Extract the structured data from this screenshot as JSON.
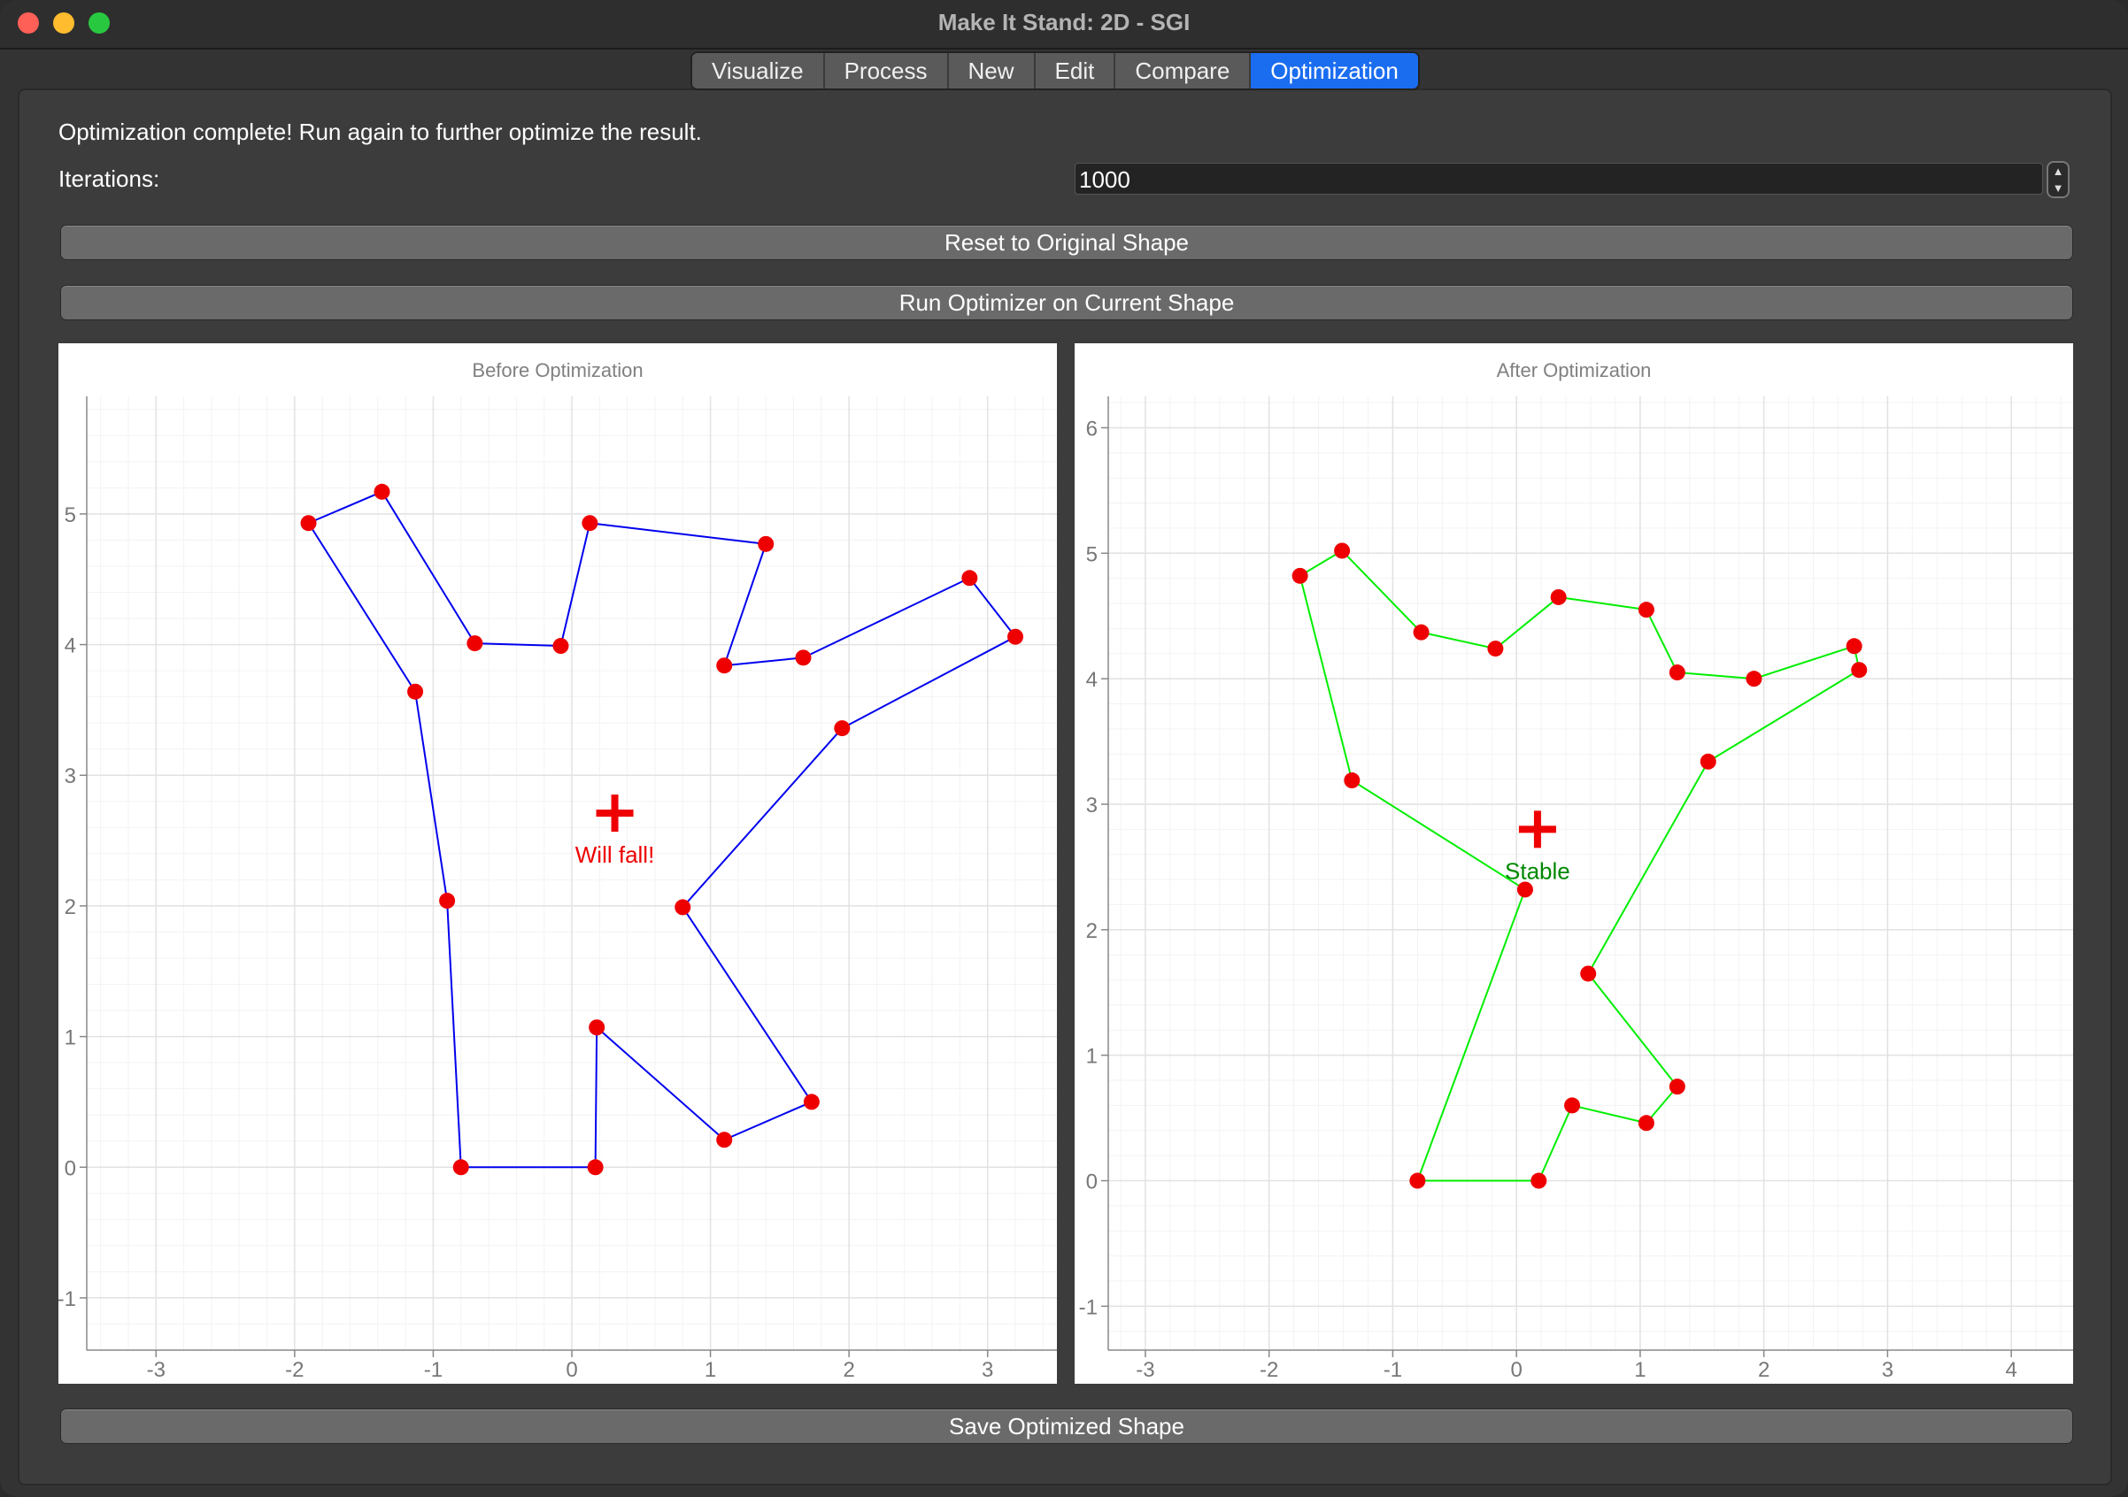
{
  "window": {
    "title": "Make It Stand: 2D - SGI"
  },
  "tabs": [
    {
      "label": "Visualize",
      "active": false
    },
    {
      "label": "Process",
      "active": false
    },
    {
      "label": "New",
      "active": false
    },
    {
      "label": "Edit",
      "active": false
    },
    {
      "label": "Compare",
      "active": false
    },
    {
      "label": "Optimization",
      "active": true
    }
  ],
  "status_message": "Optimization complete! Run again to further optimize the result.",
  "iterations": {
    "label": "Iterations:",
    "value": "1000"
  },
  "buttons": {
    "reset": "Reset to Original Shape",
    "run": "Run Optimizer on Current Shape",
    "save": "Save Optimized Shape"
  },
  "colors": {
    "accent": "#1b6df0",
    "vertex": "#ee0000",
    "before_line": "#0000ee",
    "after_line": "#00ee00",
    "stable_text": "#008800",
    "fall_text": "#ee0000"
  },
  "chart_data": [
    {
      "type": "line",
      "title": "Before Optimization",
      "xlim": [
        -3.5,
        3.5
      ],
      "ylim": [
        -1.4,
        5.9
      ],
      "xticks": [
        -3,
        -2,
        -1,
        0,
        1,
        2,
        3
      ],
      "yticks": [
        -1,
        0,
        1,
        2,
        3,
        4,
        5
      ],
      "grid": true,
      "closed": true,
      "line_color": "#0000ee",
      "points": [
        [
          -0.8,
          0
        ],
        [
          0.17,
          0
        ],
        [
          0.18,
          1.07
        ],
        [
          1.1,
          0.21
        ],
        [
          1.73,
          0.5
        ],
        [
          0.8,
          1.99
        ],
        [
          1.95,
          3.36
        ],
        [
          3.2,
          4.06
        ],
        [
          2.87,
          4.51
        ],
        [
          1.67,
          3.9
        ],
        [
          1.1,
          3.84
        ],
        [
          1.4,
          4.77
        ],
        [
          0.13,
          4.93
        ],
        [
          -0.08,
          3.99
        ],
        [
          -0.7,
          4.01
        ],
        [
          -1.37,
          5.17
        ],
        [
          -1.9,
          4.93
        ],
        [
          -1.13,
          3.64
        ],
        [
          -0.9,
          2.04
        ]
      ],
      "com": [
        0.31,
        2.71
      ],
      "com_label": "Will fall!",
      "com_label_color": "#ee0000"
    },
    {
      "type": "line",
      "title": "After Optimization",
      "xlim": [
        -3.3,
        4.5
      ],
      "ylim": [
        -1.35,
        6.25
      ],
      "xticks": [
        -3,
        -2,
        -1,
        0,
        1,
        2,
        3,
        4
      ],
      "yticks": [
        -1,
        0,
        1,
        2,
        3,
        4,
        5,
        6
      ],
      "grid": true,
      "closed": true,
      "line_color": "#00ee00",
      "points": [
        [
          -0.8,
          0
        ],
        [
          0.18,
          0
        ],
        [
          0.45,
          0.6
        ],
        [
          1.05,
          0.46
        ],
        [
          1.3,
          0.75
        ],
        [
          0.58,
          1.65
        ],
        [
          1.55,
          3.34
        ],
        [
          2.77,
          4.07
        ],
        [
          2.73,
          4.26
        ],
        [
          1.92,
          4.0
        ],
        [
          1.3,
          4.05
        ],
        [
          1.05,
          4.55
        ],
        [
          0.34,
          4.65
        ],
        [
          -0.17,
          4.24
        ],
        [
          -0.77,
          4.37
        ],
        [
          -1.41,
          5.02
        ],
        [
          -1.75,
          4.82
        ],
        [
          -1.33,
          3.19
        ],
        [
          0.07,
          2.32
        ]
      ],
      "com": [
        0.17,
        2.8
      ],
      "com_label": "Stable",
      "com_label_color": "#008800"
    }
  ]
}
